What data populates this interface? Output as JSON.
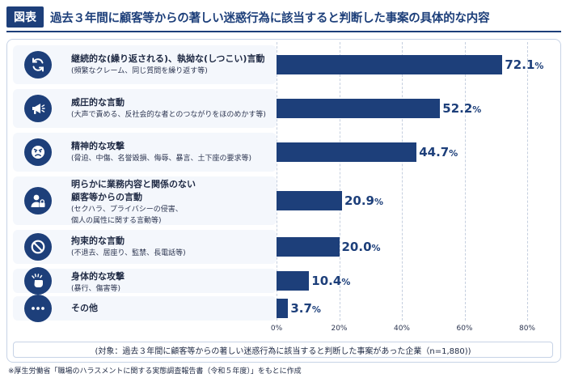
{
  "header": {
    "badge": "図表",
    "title": "過去３年間に顧客等からの著しい迷惑行為に該当すると判断した事案の具体的な内容"
  },
  "chart_data": {
    "type": "bar",
    "orientation": "horizontal",
    "unit": "%",
    "xlim": [
      0,
      80
    ],
    "xticks": [
      "0%",
      "20%",
      "40%",
      "60%",
      "80%"
    ],
    "grid": true,
    "categories": [
      {
        "label": "継続的な(繰り返される)、執拗な(しつこい)言動",
        "sub": "(頻繁なクレーム、同じ質問を繰り返す等)",
        "icon": "refresh-icon"
      },
      {
        "label": "威圧的な言動",
        "sub": "(大声で責める、反社会的な者とのつながりをほのめかす等)",
        "icon": "megaphone-icon"
      },
      {
        "label": "精神的な攻撃",
        "sub": "(脅迫、中傷、名誉毀損、侮辱、暴言、土下座の要求等)",
        "icon": "angry-face-icon"
      },
      {
        "label": "明らかに業務内容と関係のない\n顧客等からの言動",
        "sub": "(セクハラ、プライバシーの侵害、\n個人の属性に関する言動等)",
        "icon": "user-lock-icon"
      },
      {
        "label": "拘束的な言動",
        "sub": "(不退去、居座り、監禁、長電話等)",
        "icon": "prohibited-icon"
      },
      {
        "label": "身体的な攻撃",
        "sub": "(暴行、傷害等)",
        "icon": "fist-impact-icon"
      },
      {
        "label": "その他",
        "sub": "",
        "icon": "ellipsis-icon"
      }
    ],
    "values": [
      72.1,
      52.2,
      44.7,
      20.9,
      20.0,
      10.4,
      3.7
    ],
    "value_labels": [
      "72.1",
      "52.2",
      "44.7",
      "20.9",
      "20.0",
      "10.4",
      "3.7"
    ]
  },
  "colors": {
    "accent": "#1d3f7a",
    "panel": "#f4f7fc"
  },
  "footnote": "(対象：過去３年間に顧客等からの著しい迷惑行為に該当すると判断した事案があった企業（n=1,880))",
  "source": "※厚生労働省「職場のハラスメントに関する実態調査報告書（令和５年度）」をもとに作成"
}
